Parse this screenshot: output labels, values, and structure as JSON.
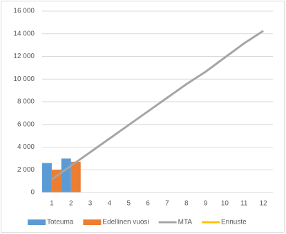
{
  "chart_data": {
    "type": "bar",
    "categories": [
      "1",
      "2",
      "3",
      "4",
      "5",
      "6",
      "7",
      "8",
      "9",
      "10",
      "11",
      "12"
    ],
    "series": [
      {
        "name": "Toteuma",
        "type": "bar",
        "color": "#5b9bd5",
        "values": [
          2600,
          3000,
          null,
          null,
          null,
          null,
          null,
          null,
          null,
          null,
          null,
          null
        ]
      },
      {
        "name": "Edellinen vuosi",
        "type": "bar",
        "color": "#ed7d31",
        "values": [
          2000,
          2700,
          null,
          null,
          null,
          null,
          null,
          null,
          null,
          null,
          null,
          null
        ]
      },
      {
        "name": "MTA",
        "type": "line",
        "color": "#a5a5a5",
        "values": [
          1150,
          2350,
          3550,
          4750,
          5950,
          7150,
          8350,
          9550,
          10650,
          11900,
          13150,
          14250
        ]
      },
      {
        "name": "Ennuste",
        "type": "line",
        "color": "#ffc000",
        "values": [
          null,
          null,
          null,
          null,
          null,
          null,
          null,
          null,
          null,
          null,
          null,
          null
        ]
      }
    ],
    "ylim": [
      0,
      16000
    ],
    "yticks": [
      0,
      {
        "value": 2000,
        "label": "2 000"
      },
      {
        "value": 4000,
        "label": "4 000"
      },
      {
        "value": 6000,
        "label": "6 000"
      },
      {
        "value": 8000,
        "label": "8 000"
      },
      {
        "value": 10000,
        "label": "10 000"
      },
      {
        "value": 12000,
        "label": "12 000"
      },
      {
        "value": 14000,
        "label": "14 000"
      },
      {
        "value": 16000,
        "label": "16 000"
      }
    ],
    "grid": true,
    "legend": "bottom"
  }
}
